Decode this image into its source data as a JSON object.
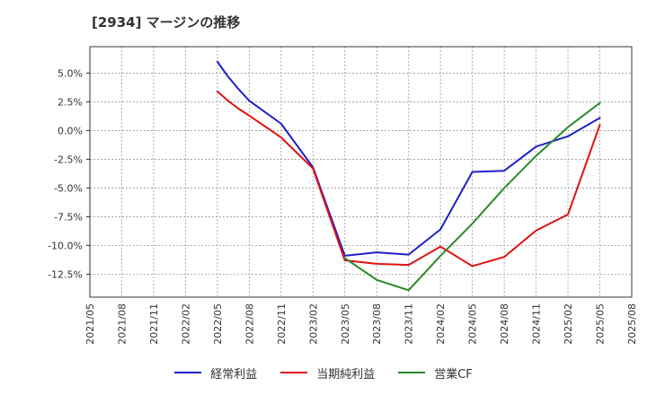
{
  "chart_data": {
    "type": "line",
    "title": "[2934]  マージンの推移",
    "xlabel": "",
    "ylabel": "",
    "x_ticks": [
      "2021/05",
      "2021/08",
      "2021/11",
      "2022/02",
      "2022/05",
      "2022/08",
      "2022/11",
      "2023/02",
      "2023/05",
      "2023/08",
      "2023/11",
      "2024/02",
      "2024/05",
      "2024/08",
      "2024/11",
      "2025/02",
      "2025/05",
      "2025/08"
    ],
    "y_ticks": [
      "5.0%",
      "2.5%",
      "0.0%",
      "-2.5%",
      "-5.0%",
      "-7.5%",
      "-10.0%",
      "-12.5%"
    ],
    "y_tick_values": [
      5.0,
      2.5,
      0.0,
      -2.5,
      -5.0,
      -7.5,
      -10.0,
      -12.5
    ],
    "xlim": [
      "2021/05",
      "2025/08"
    ],
    "ylim": [
      -14.5,
      7.3
    ],
    "grid": true,
    "legend_position": "bottom",
    "series": [
      {
        "name": "経常利益",
        "color": "#1f1fcc",
        "points": [
          [
            "2022/05",
            6.0
          ],
          [
            "2022/06",
            4.7
          ],
          [
            "2022/07",
            3.6
          ],
          [
            "2022/08",
            2.6
          ],
          [
            "2022/11",
            0.6
          ],
          [
            "2023/02",
            -3.2
          ],
          [
            "2023/05",
            -10.9
          ],
          [
            "2023/08",
            -10.6
          ],
          [
            "2023/11",
            -10.8
          ],
          [
            "2024/02",
            -8.6
          ],
          [
            "2024/05",
            -3.6
          ],
          [
            "2024/08",
            -3.5
          ],
          [
            "2024/11",
            -1.4
          ],
          [
            "2025/02",
            -0.5
          ],
          [
            "2025/05",
            1.1
          ]
        ]
      },
      {
        "name": "当期純利益",
        "color": "#e01010",
        "points": [
          [
            "2022/05",
            3.4
          ],
          [
            "2022/06",
            2.6
          ],
          [
            "2022/07",
            1.9
          ],
          [
            "2022/08",
            1.3
          ],
          [
            "2022/11",
            -0.6
          ],
          [
            "2023/02",
            -3.3
          ],
          [
            "2023/05",
            -11.3
          ],
          [
            "2023/08",
            -11.6
          ],
          [
            "2023/11",
            -11.7
          ],
          [
            "2024/02",
            -10.1
          ],
          [
            "2024/05",
            -11.8
          ],
          [
            "2024/08",
            -11.0
          ],
          [
            "2024/11",
            -8.7
          ],
          [
            "2025/02",
            -7.3
          ],
          [
            "2025/05",
            0.5
          ]
        ]
      },
      {
        "name": "営業CF",
        "color": "#2a8a2a",
        "points": [
          [
            "2023/05",
            -11.1
          ],
          [
            "2023/08",
            -13.0
          ],
          [
            "2023/11",
            -13.9
          ],
          [
            "2024/02",
            -10.9
          ],
          [
            "2024/05",
            -8.1
          ],
          [
            "2024/08",
            -5.0
          ],
          [
            "2024/11",
            -2.2
          ],
          [
            "2025/02",
            0.3
          ],
          [
            "2025/05",
            2.4
          ]
        ]
      }
    ]
  }
}
